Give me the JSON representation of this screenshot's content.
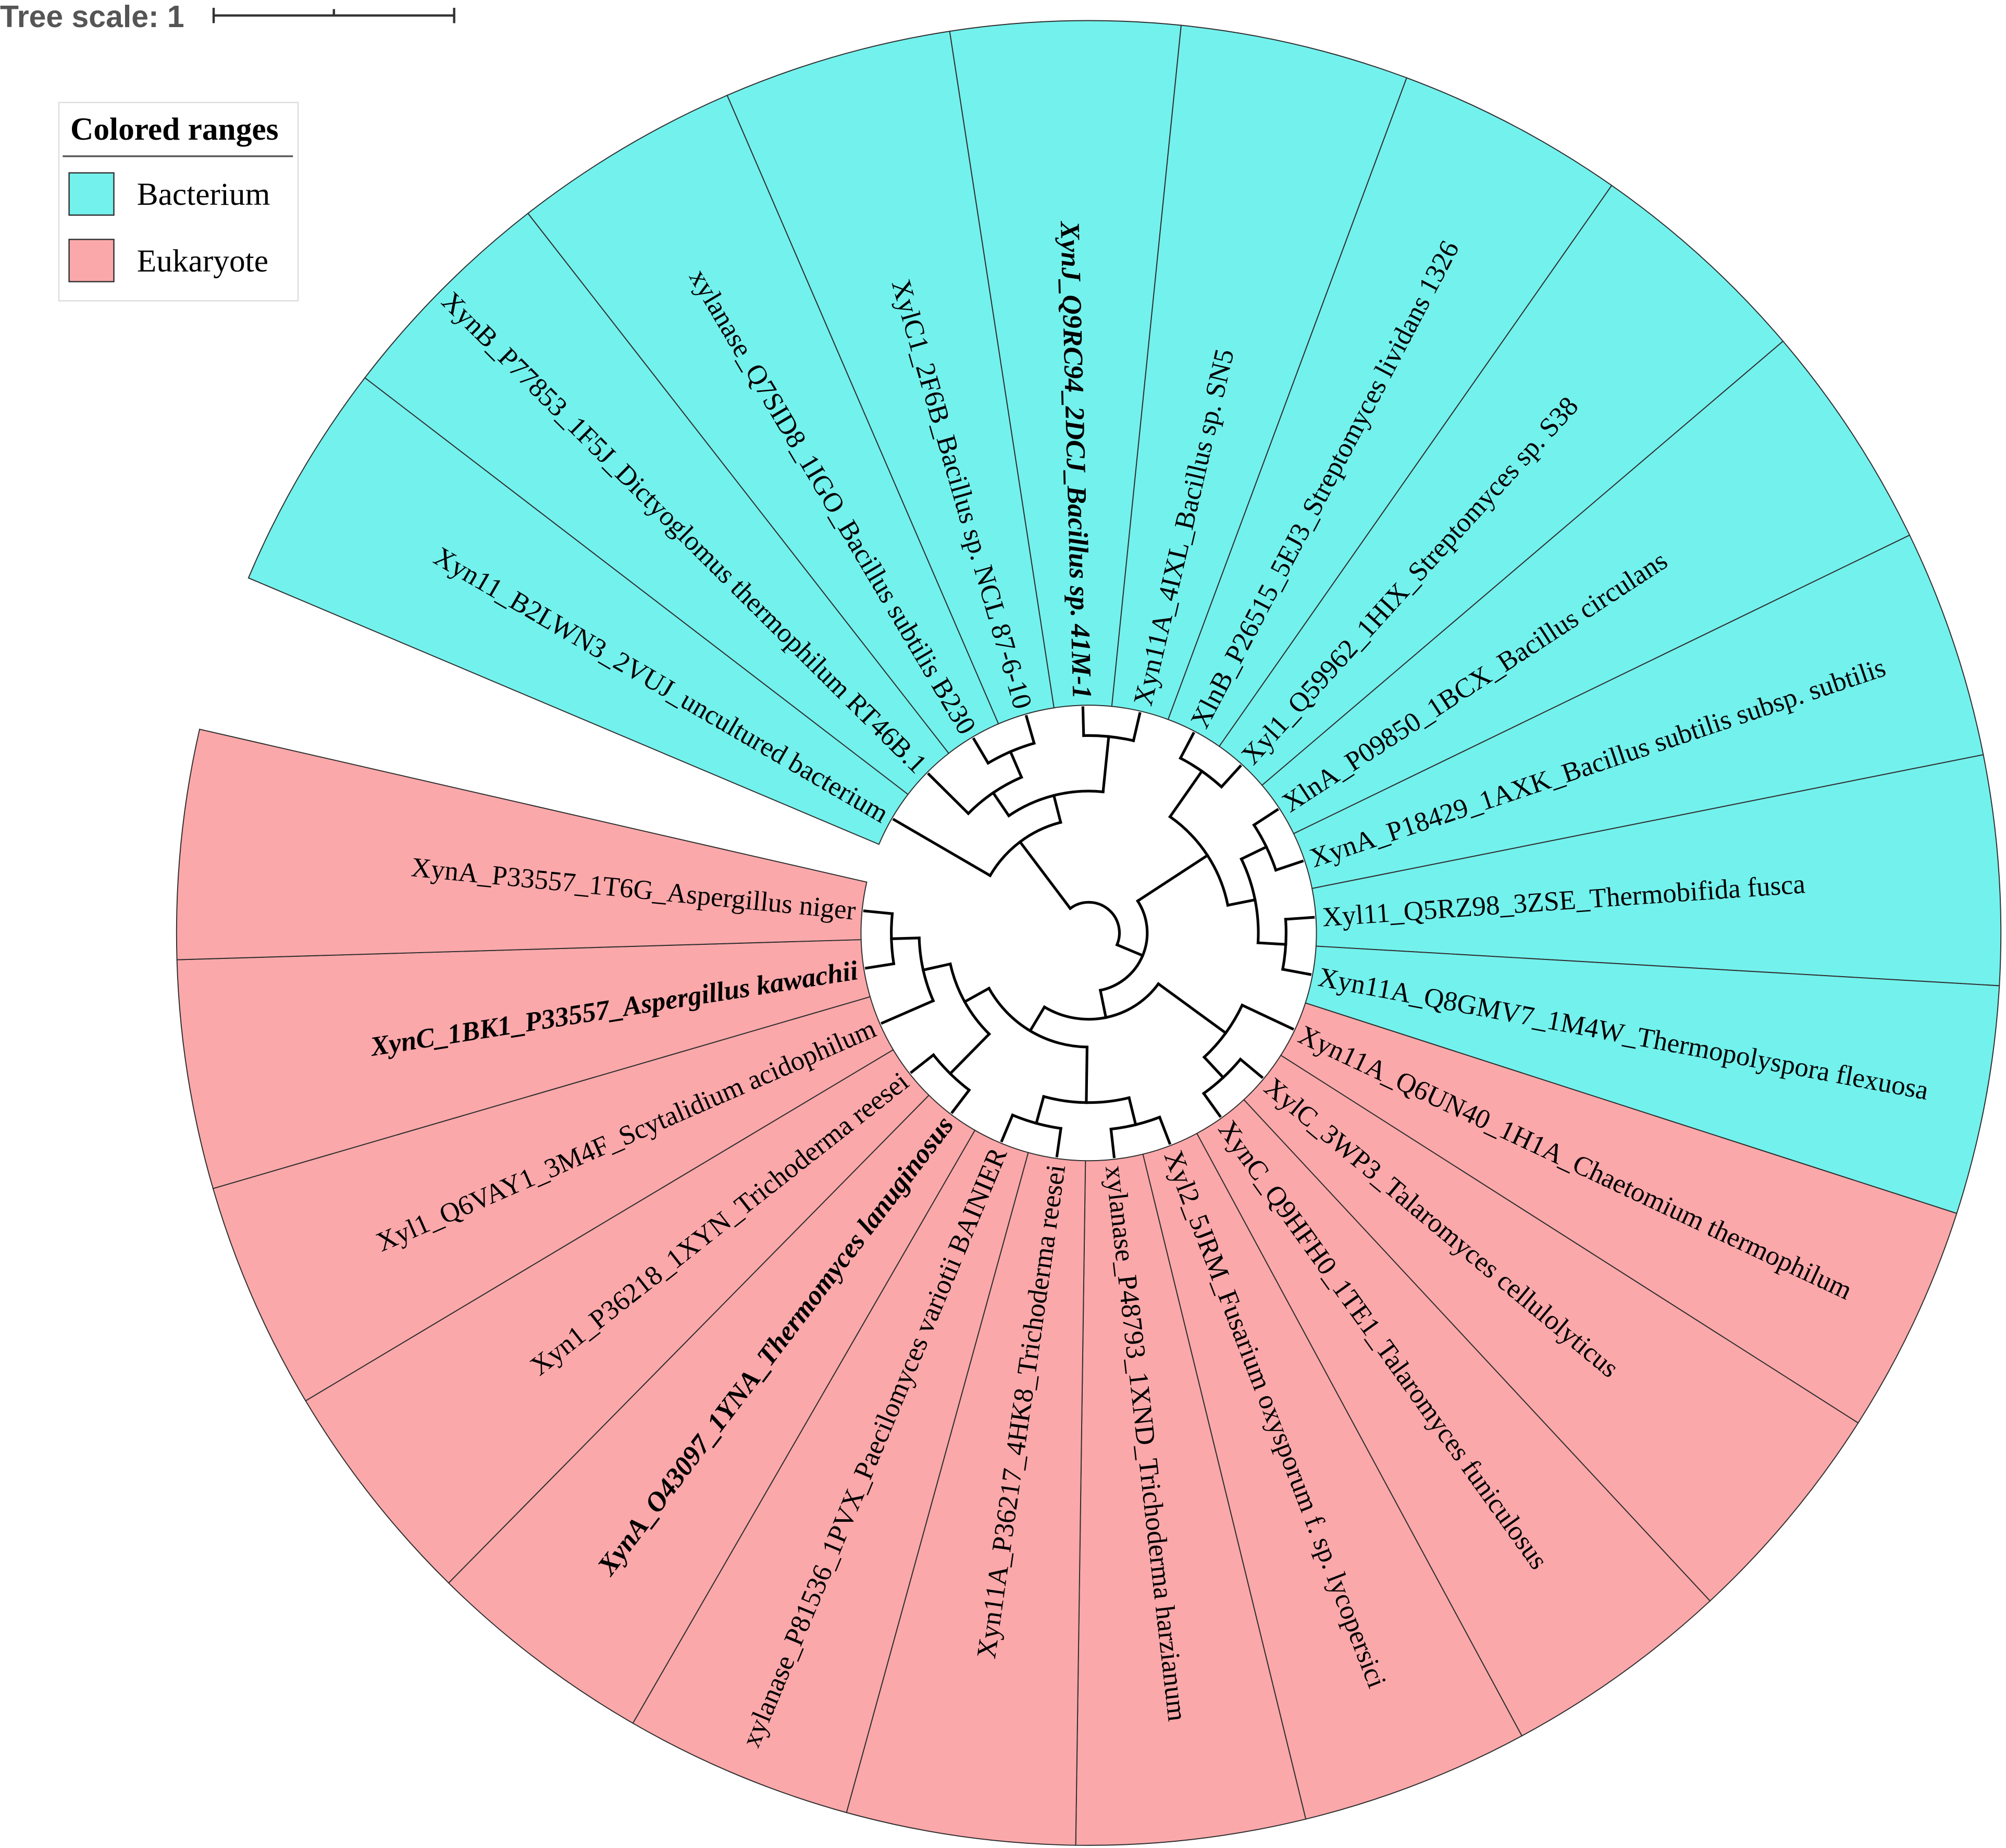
{
  "tree_scale": {
    "label": "Tree scale: 1"
  },
  "legend": {
    "title": "Colored ranges",
    "items": [
      {
        "label": "Bacterium",
        "color": "#73F1ED"
      },
      {
        "label": "Eukaryote",
        "color": "#FBA8AA"
      }
    ]
  },
  "leaves": [
    {
      "label": "Xyn11_B2LWN3_2VUJ_uncultured bacterium",
      "group": 0,
      "emphasis": false
    },
    {
      "label": "XynB_P77853_1F5J_Dictyoglomus thermophilum RT46B.1",
      "group": 0,
      "emphasis": false
    },
    {
      "label": "xylanase_Q7SID8_1IGO_Bacillus subtilis B230",
      "group": 0,
      "emphasis": false
    },
    {
      "label": "XylC1_2F6B_Bacillus sp. NCL 87-6-10",
      "group": 0,
      "emphasis": false
    },
    {
      "label": "XynJ_Q9RC94_2DCJ_Bacillus sp. 41M-1",
      "group": 0,
      "emphasis": true
    },
    {
      "label": "Xyn11A_4IXL_Bacillus sp. SN5",
      "group": 0,
      "emphasis": false
    },
    {
      "label": "XlnB_P26515_5EJ3_Streptomyces lividans 1326",
      "group": 0,
      "emphasis": false
    },
    {
      "label": "Xyl1_Q59962_1HIX_Streptomyces sp. S38",
      "group": 0,
      "emphasis": false
    },
    {
      "label": "XlnA_P09850_1BCX_Bacillus circulans",
      "group": 0,
      "emphasis": false
    },
    {
      "label": "XynA_P18429_1AXK_Bacillus subtilis subsp. subtilis",
      "group": 0,
      "emphasis": false
    },
    {
      "label": "Xyl11_Q5RZ98_3ZSE_Thermobifida fusca",
      "group": 0,
      "emphasis": false
    },
    {
      "label": "Xyn11A_Q8GMV7_1M4W_Thermopolyspora flexuosa",
      "group": 0,
      "emphasis": false
    },
    {
      "label": "Xyn11A_Q6UN40_1H1A_Chaetomium thermophilum",
      "group": 1,
      "emphasis": false
    },
    {
      "label": "XylC_3WP3_Talaromyces cellulolyticus",
      "group": 1,
      "emphasis": false
    },
    {
      "label": "XynC_Q9HFH0_1TE1_Talaromyces funiculosus",
      "group": 1,
      "emphasis": false
    },
    {
      "label": "Xyl2_5JRM_Fusarium oxysporum f. sp. lycopersici",
      "group": 1,
      "emphasis": false
    },
    {
      "label": "xylanase_P48793_1XND_Trichoderma harzianum",
      "group": 1,
      "emphasis": false
    },
    {
      "label": "Xyn11A_P36217_4HK8_Trichoderma reesei",
      "group": 1,
      "emphasis": false
    },
    {
      "label": "xylanase_P81536_1PVX_Paecilomyces variotii BAINIER",
      "group": 1,
      "emphasis": false
    },
    {
      "label": "XynA_O43097_1YNA_Thermomyces lanuginosus",
      "group": 1,
      "emphasis": true
    },
    {
      "label": "Xyn1_P36218_1XYN_Trichoderma reesei",
      "group": 1,
      "emphasis": false
    },
    {
      "label": "Xyl1_Q6VAY1_3M4F_Scytalidium acidophilum",
      "group": 1,
      "emphasis": false
    },
    {
      "label": "XynC_1BK1_P33557_Aspergillus kawachii",
      "group": 1,
      "emphasis": true
    },
    {
      "label": "XynA_P33557_1T6G_Aspergillus niger",
      "group": 1,
      "emphasis": false
    }
  ],
  "tree": [
    [
      0,
      [
        [
          1,
          [
            2,
            3
          ]
        ],
        [
          4,
          5
        ]
      ]
    ],
    [
      [
        [
          6,
          7
        ],
        [
          [
            8,
            9
          ],
          [
            10,
            11
          ]
        ]
      ],
      [
        [
          12,
          [
            13,
            14
          ]
        ],
        [
          [
            [
              15,
              16
            ],
            [
              17,
              18
            ]
          ],
          [
            [
              19,
              20
            ],
            [
              21,
              [
                22,
                23
              ]
            ]
          ]
        ]
      ]
    ]
  ]
}
